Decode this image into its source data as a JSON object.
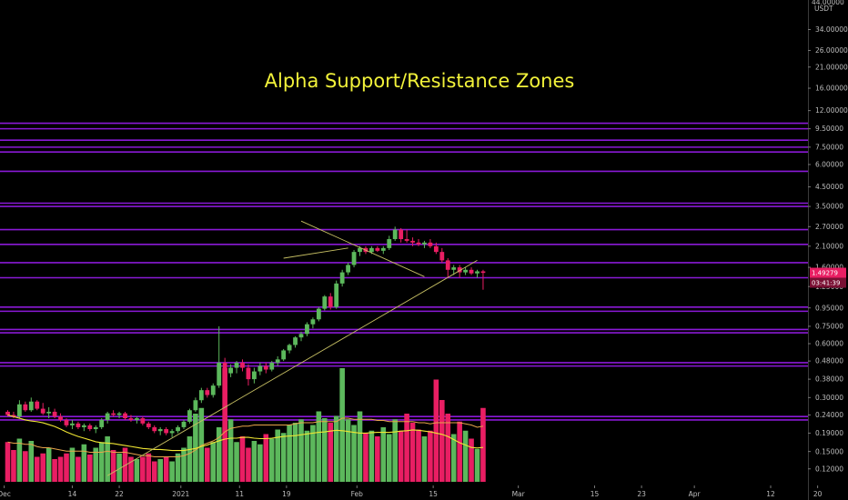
{
  "chart_data": {
    "type": "candlestick",
    "title": "Alpha Support/Resistance Zones",
    "y_scale": "log",
    "ylim": [
      0.104,
      48
    ],
    "currency_label": "USDT",
    "top_tick": "44.00000",
    "y_ticks": [
      "34.00000",
      "26.00000",
      "21.00000",
      "16.00000",
      "12.00000",
      "9.50000",
      "7.50000",
      "6.00000",
      "4.50000",
      "3.50000",
      "2.70000",
      "2.10000",
      "1.60000",
      "1.25000",
      "0.95000",
      "0.75000",
      "0.60000",
      "0.48000",
      "0.38000",
      "0.30000",
      "0.24000",
      "0.19000",
      "0.15000",
      "0.12000"
    ],
    "x_labels": [
      "Dec",
      "14",
      "22",
      "2021",
      "11",
      "19",
      "Feb",
      "15",
      "Mar",
      "15",
      "23",
      "Apr",
      "12",
      "20"
    ],
    "x_label_days": [
      -0.6,
      11,
      19,
      29.5,
      39.5,
      47.5,
      59.5,
      72.5,
      87,
      100,
      108,
      117,
      130,
      138
    ],
    "price_badge": "1.49279",
    "timer_badge": "03:41:39",
    "current_price": 1.49279,
    "zone_levels": [
      10.2,
      9.5,
      8.2,
      7.5,
      7.05,
      5.5,
      3.65,
      3.5,
      2.6,
      2.15,
      1.7,
      1.4,
      0.96,
      0.91,
      0.72,
      0.69,
      0.47,
      0.45,
      0.235,
      0.225
    ],
    "trendlines": [
      {
        "name": "rising-support",
        "from": [
          17,
          0.11
        ],
        "to": [
          80,
          1.75
        ]
      },
      {
        "name": "falling-resistance",
        "from": [
          50,
          2.9
        ],
        "to": [
          71,
          1.42
        ]
      },
      {
        "name": "triangle-lower",
        "from": [
          47,
          1.8
        ],
        "to": [
          58,
          2.05
        ]
      }
    ],
    "candles": [
      [
        0.25,
        0.255,
        0.235,
        0.24
      ],
      [
        0.24,
        0.25,
        0.23,
        0.235
      ],
      [
        0.235,
        0.29,
        0.23,
        0.275
      ],
      [
        0.275,
        0.285,
        0.25,
        0.255
      ],
      [
        0.255,
        0.3,
        0.25,
        0.285
      ],
      [
        0.285,
        0.29,
        0.255,
        0.26
      ],
      [
        0.26,
        0.28,
        0.24,
        0.245
      ],
      [
        0.245,
        0.265,
        0.23,
        0.25
      ],
      [
        0.25,
        0.26,
        0.23,
        0.235
      ],
      [
        0.235,
        0.245,
        0.22,
        0.225
      ],
      [
        0.225,
        0.23,
        0.205,
        0.21
      ],
      [
        0.21,
        0.225,
        0.2,
        0.215
      ],
      [
        0.215,
        0.22,
        0.2,
        0.205
      ],
      [
        0.205,
        0.215,
        0.195,
        0.21
      ],
      [
        0.21,
        0.215,
        0.195,
        0.2
      ],
      [
        0.2,
        0.21,
        0.19,
        0.205
      ],
      [
        0.205,
        0.23,
        0.2,
        0.225
      ],
      [
        0.225,
        0.25,
        0.215,
        0.245
      ],
      [
        0.245,
        0.255,
        0.235,
        0.24
      ],
      [
        0.24,
        0.25,
        0.23,
        0.245
      ],
      [
        0.245,
        0.25,
        0.225,
        0.23
      ],
      [
        0.23,
        0.24,
        0.22,
        0.225
      ],
      [
        0.225,
        0.235,
        0.215,
        0.23
      ],
      [
        0.23,
        0.235,
        0.21,
        0.215
      ],
      [
        0.215,
        0.22,
        0.2,
        0.205
      ],
      [
        0.205,
        0.21,
        0.19,
        0.195
      ],
      [
        0.195,
        0.205,
        0.185,
        0.2
      ],
      [
        0.2,
        0.205,
        0.185,
        0.19
      ],
      [
        0.19,
        0.2,
        0.18,
        0.195
      ],
      [
        0.195,
        0.21,
        0.19,
        0.205
      ],
      [
        0.205,
        0.225,
        0.2,
        0.22
      ],
      [
        0.22,
        0.26,
        0.215,
        0.255
      ],
      [
        0.255,
        0.3,
        0.25,
        0.29
      ],
      [
        0.29,
        0.34,
        0.28,
        0.33
      ],
      [
        0.33,
        0.34,
        0.3,
        0.31
      ],
      [
        0.31,
        0.36,
        0.3,
        0.35
      ],
      [
        0.35,
        0.75,
        0.34,
        0.47
      ],
      [
        0.47,
        0.5,
        0.39,
        0.41
      ],
      [
        0.41,
        0.46,
        0.39,
        0.44
      ],
      [
        0.44,
        0.48,
        0.41,
        0.47
      ],
      [
        0.47,
        0.49,
        0.42,
        0.44
      ],
      [
        0.44,
        0.46,
        0.35,
        0.38
      ],
      [
        0.38,
        0.44,
        0.36,
        0.42
      ],
      [
        0.42,
        0.47,
        0.4,
        0.45
      ],
      [
        0.45,
        0.47,
        0.41,
        0.43
      ],
      [
        0.43,
        0.48,
        0.42,
        0.47
      ],
      [
        0.47,
        0.51,
        0.45,
        0.49
      ],
      [
        0.49,
        0.56,
        0.48,
        0.55
      ],
      [
        0.55,
        0.6,
        0.53,
        0.59
      ],
      [
        0.59,
        0.66,
        0.57,
        0.65
      ],
      [
        0.65,
        0.7,
        0.62,
        0.68
      ],
      [
        0.68,
        0.79,
        0.66,
        0.77
      ],
      [
        0.77,
        0.84,
        0.73,
        0.82
      ],
      [
        0.82,
        0.96,
        0.8,
        0.94
      ],
      [
        0.94,
        1.12,
        0.92,
        1.1
      ],
      [
        1.1,
        1.15,
        0.93,
        0.96
      ],
      [
        0.96,
        1.35,
        0.94,
        1.3
      ],
      [
        1.3,
        1.55,
        1.25,
        1.5
      ],
      [
        1.5,
        1.7,
        1.45,
        1.65
      ],
      [
        1.65,
        2.0,
        1.6,
        1.95
      ],
      [
        1.95,
        2.1,
        1.85,
        2.05
      ],
      [
        2.05,
        2.1,
        1.9,
        1.95
      ],
      [
        1.95,
        2.1,
        1.9,
        2.05
      ],
      [
        2.05,
        2.1,
        1.95,
        1.98
      ],
      [
        1.98,
        2.1,
        1.9,
        2.05
      ],
      [
        2.05,
        2.4,
        2.0,
        2.3
      ],
      [
        2.3,
        2.7,
        2.25,
        2.6
      ],
      [
        2.6,
        2.65,
        2.2,
        2.3
      ],
      [
        2.3,
        2.6,
        2.2,
        2.25
      ],
      [
        2.25,
        2.35,
        2.1,
        2.2
      ],
      [
        2.2,
        2.3,
        2.1,
        2.15
      ],
      [
        2.15,
        2.25,
        2.05,
        2.2
      ],
      [
        2.2,
        2.3,
        2.05,
        2.1
      ],
      [
        2.1,
        2.2,
        1.9,
        1.95
      ],
      [
        1.95,
        2.05,
        1.7,
        1.75
      ],
      [
        1.75,
        1.8,
        1.4,
        1.55
      ],
      [
        1.55,
        1.65,
        1.45,
        1.6
      ],
      [
        1.6,
        1.65,
        1.4,
        1.5
      ],
      [
        1.5,
        1.6,
        1.45,
        1.55
      ],
      [
        1.55,
        1.6,
        1.45,
        1.48
      ],
      [
        1.48,
        1.55,
        1.4,
        1.52
      ],
      [
        1.52,
        1.55,
        1.2,
        1.49
      ]
    ],
    "volumes": [
      0.35,
      0.28,
      0.38,
      0.27,
      0.36,
      0.22,
      0.25,
      0.3,
      0.2,
      0.22,
      0.25,
      0.3,
      0.22,
      0.33,
      0.24,
      0.3,
      0.35,
      0.4,
      0.28,
      0.25,
      0.3,
      0.22,
      0.2,
      0.22,
      0.25,
      0.18,
      0.2,
      0.22,
      0.18,
      0.25,
      0.3,
      0.4,
      0.6,
      0.65,
      0.3,
      0.35,
      0.48,
      1.0,
      0.55,
      0.35,
      0.4,
      0.3,
      0.36,
      0.33,
      0.42,
      0.38,
      0.46,
      0.43,
      0.5,
      0.52,
      0.55,
      0.45,
      0.5,
      0.62,
      0.56,
      0.52,
      0.58,
      1.0,
      0.55,
      0.5,
      0.62,
      0.43,
      0.45,
      0.4,
      0.48,
      0.42,
      0.55,
      0.45,
      0.6,
      0.52,
      0.46,
      0.4,
      0.45,
      0.9,
      0.72,
      0.6,
      0.42,
      0.53,
      0.45,
      0.38,
      0.29,
      0.65
    ],
    "volume_ma": [
      0.35,
      0.34,
      0.34,
      0.33,
      0.33,
      0.31,
      0.3,
      0.3,
      0.29,
      0.28,
      0.27,
      0.27,
      0.27,
      0.27,
      0.26,
      0.26,
      0.26,
      0.27,
      0.26,
      0.26,
      0.26,
      0.25,
      0.24,
      0.23,
      0.23,
      0.22,
      0.22,
      0.22,
      0.22,
      0.22,
      0.23,
      0.25,
      0.28,
      0.32,
      0.34,
      0.36,
      0.39,
      0.44,
      0.47,
      0.48,
      0.49,
      0.49,
      0.5,
      0.5,
      0.5,
      0.5,
      0.5,
      0.5,
      0.5,
      0.51,
      0.52,
      0.52,
      0.52,
      0.53,
      0.53,
      0.53,
      0.53,
      0.56,
      0.56,
      0.55,
      0.55,
      0.55,
      0.55,
      0.54,
      0.54,
      0.53,
      0.53,
      0.53,
      0.53,
      0.53,
      0.52,
      0.52,
      0.51,
      0.52,
      0.52,
      0.52,
      0.52,
      0.52,
      0.51,
      0.5,
      0.48,
      0.49
    ],
    "ma_line": [
      0.24,
      0.235,
      0.23,
      0.225,
      0.222,
      0.22,
      0.217,
      0.212,
      0.207,
      0.2,
      0.193,
      0.187,
      0.182,
      0.178,
      0.174,
      0.17,
      0.168,
      0.167,
      0.166,
      0.164,
      0.162,
      0.16,
      0.158,
      0.156,
      0.155,
      0.154,
      0.154,
      0.153,
      0.152,
      0.152,
      0.152,
      0.154,
      0.156,
      0.16,
      0.163,
      0.168,
      0.172,
      0.176,
      0.178,
      0.178,
      0.18,
      0.18,
      0.178,
      0.177,
      0.177,
      0.178,
      0.18,
      0.182,
      0.183,
      0.184,
      0.186,
      0.188,
      0.19,
      0.192,
      0.193,
      0.195,
      0.197,
      0.196,
      0.194,
      0.192,
      0.19,
      0.19,
      0.191,
      0.192,
      0.192,
      0.192,
      0.193,
      0.195,
      0.196,
      0.198,
      0.197,
      0.195,
      0.193,
      0.19,
      0.187,
      0.182,
      0.175,
      0.168,
      0.163,
      0.158,
      0.157,
      0.158
    ],
    "colors": {
      "background": "#000000",
      "up": "#5cb85c",
      "down": "#e91e63",
      "zone": "#8a19d6",
      "trendline": "#c6bf63",
      "ma": "#f0e633",
      "title": "#f2f23a",
      "axis_text": "#bdbdbd",
      "axis_line": "#3a3a3a",
      "badge_price": "#e91e63"
    },
    "grid": false
  }
}
